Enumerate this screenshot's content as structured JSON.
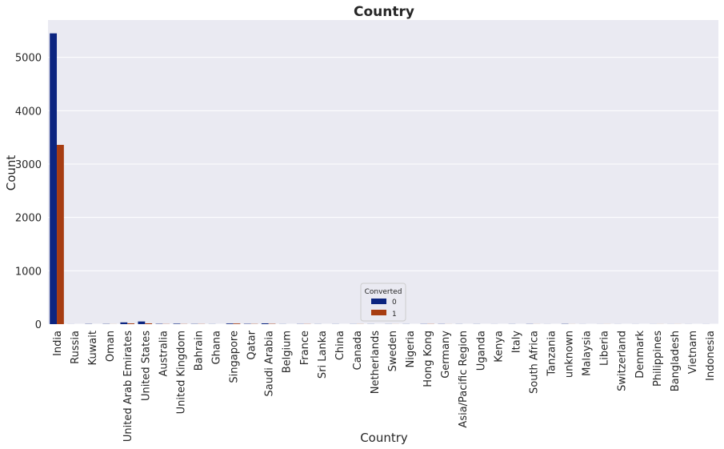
{
  "chart_data": {
    "type": "bar",
    "title": "Country",
    "xlabel": "Country",
    "ylabel": "Count",
    "ylim": [
      0,
      5700
    ],
    "yticks": [
      0,
      1000,
      2000,
      3000,
      4000,
      5000
    ],
    "grid": true,
    "legend": {
      "title": "Converted",
      "placement": "bottom-center"
    },
    "categories": [
      "India",
      "Russia",
      "Kuwait",
      "Oman",
      "United Arab Emirates",
      "United States",
      "Australia",
      "United Kingdom",
      "Bahrain",
      "Ghana",
      "Singapore",
      "Qatar",
      "Saudi Arabia",
      "Belgium",
      "France",
      "Sri Lanka",
      "China",
      "Canada",
      "Netherlands",
      "Sweden",
      "Nigeria",
      "Hong Kong",
      "Germany",
      "Asia/Pacific Region",
      "Uganda",
      "Kenya",
      "Italy",
      "South Africa",
      "Tanzania",
      "unknown",
      "Malaysia",
      "Liberia",
      "Switzerland",
      "Denmark",
      "Philippines",
      "Bangladesh",
      "Vietnam",
      "Indonesia"
    ],
    "series": [
      {
        "name": "0",
        "color": "#0c2580",
        "values": [
          5450,
          1,
          4,
          4,
          33,
          50,
          6,
          9,
          4,
          2,
          12,
          6,
          15,
          2,
          3,
          2,
          2,
          2,
          2,
          2,
          2,
          3,
          3,
          2,
          2,
          1,
          2,
          3,
          1,
          4,
          1,
          1,
          1,
          1,
          1,
          1,
          1,
          1
        ]
      },
      {
        "name": "1",
        "color": "#a73d12",
        "values": [
          3360,
          0,
          0,
          1,
          14,
          15,
          3,
          3,
          3,
          0,
          12,
          4,
          6,
          0,
          3,
          0,
          0,
          2,
          0,
          1,
          0,
          3,
          1,
          0,
          0,
          0,
          0,
          1,
          0,
          1,
          0,
          1,
          0,
          0,
          1,
          1,
          0,
          0
        ]
      }
    ]
  }
}
